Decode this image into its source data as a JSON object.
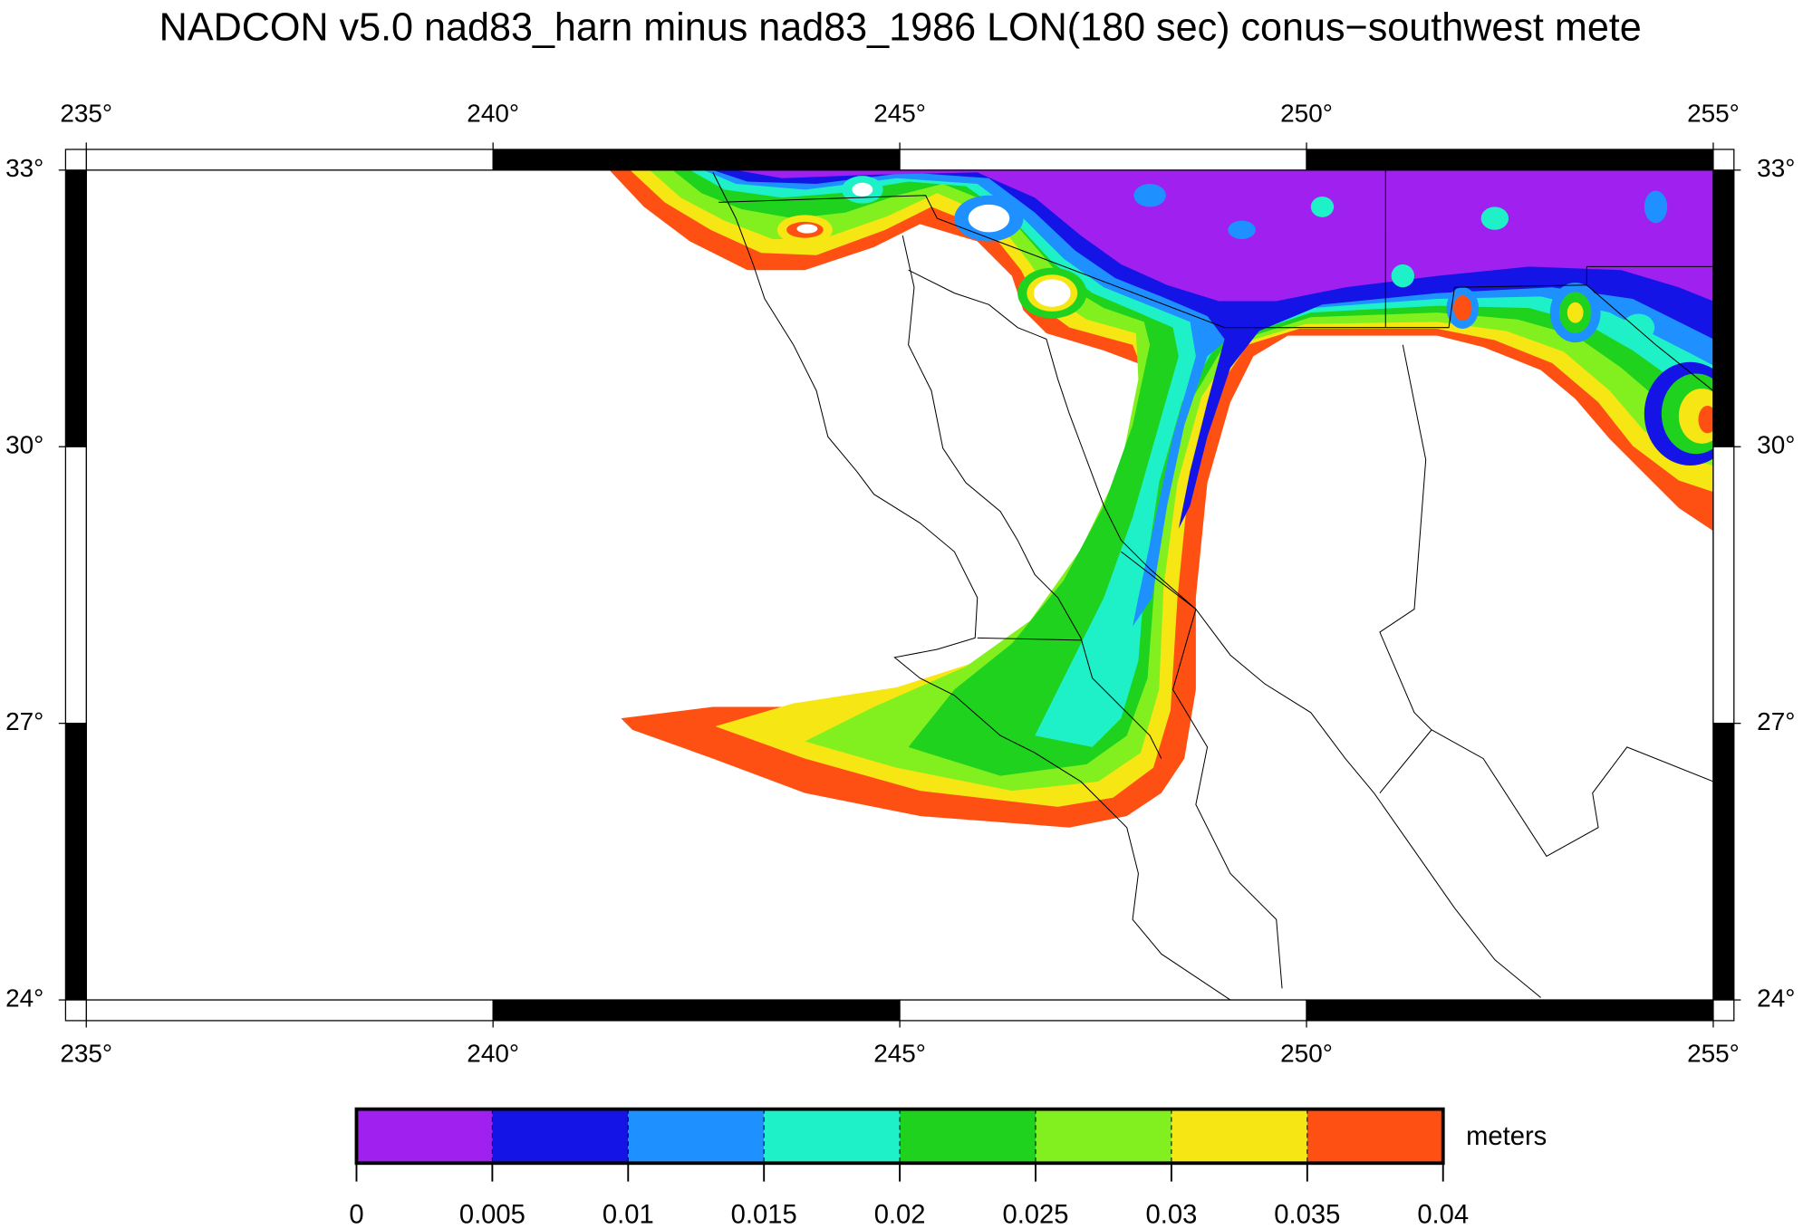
{
  "title": "NADCON v5.0 nad83_harn minus nad83_1986 LON(180 sec) conus−southwest mete",
  "map": {
    "lon_ticks": [
      {
        "value": 235,
        "label": "235°"
      },
      {
        "value": 240,
        "label": "240°"
      },
      {
        "value": 245,
        "label": "245°"
      },
      {
        "value": 250,
        "label": "250°"
      },
      {
        "value": 255,
        "label": "255°"
      }
    ],
    "lat_ticks": [
      {
        "value": 33,
        "label": "33°"
      },
      {
        "value": 30,
        "label": "30°"
      },
      {
        "value": 27,
        "label": "27°"
      },
      {
        "value": 24,
        "label": "24°"
      }
    ],
    "lon_range": [
      235,
      255
    ],
    "lat_range": [
      24,
      33
    ]
  },
  "colorbar": {
    "ticks": [
      0,
      0.005,
      0.01,
      0.015,
      0.02,
      0.025,
      0.03,
      0.035,
      0.04
    ],
    "colors": [
      "#a020f0",
      "#1414e6",
      "#1e90ff",
      "#1ef0c8",
      "#1ed21e",
      "#82f01e",
      "#f5e614",
      "#ff5014"
    ],
    "label": "meters"
  }
}
